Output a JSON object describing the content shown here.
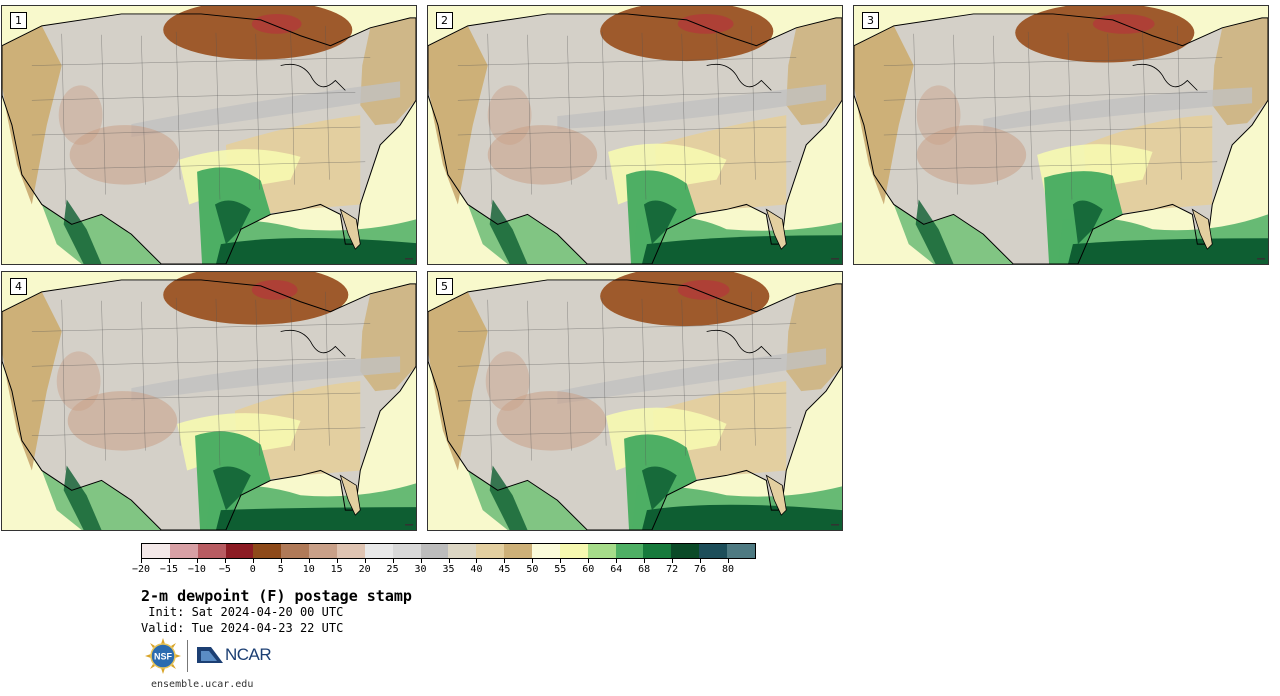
{
  "panels": [
    {
      "label": "1"
    },
    {
      "label": "2"
    },
    {
      "label": "3"
    },
    {
      "label": "4"
    },
    {
      "label": "5"
    }
  ],
  "colorbar": {
    "colors": [
      "#f3e8e8",
      "#d8a0a5",
      "#b85c62",
      "#8c1c24",
      "#8e4a1a",
      "#b07a58",
      "#c9a088",
      "#dfc4b2",
      "#e8e8e8",
      "#d8d8d8",
      "#bcbcbc",
      "#dcd6c4",
      "#e3cfa0",
      "#cdb078",
      "#fbfbda",
      "#f6f8b0",
      "#a6dc8a",
      "#4eaf64",
      "#177a3c",
      "#0b4a28",
      "#1d4e5a",
      "#4e7a82"
    ],
    "tick_labels": [
      "−20",
      "−15",
      "−10",
      "−5",
      "0",
      "5",
      "10",
      "15",
      "20",
      "25",
      "30",
      "35",
      "40",
      "45",
      "50",
      "55",
      "60",
      "64",
      "68",
      "72",
      "76",
      "80"
    ]
  },
  "title": "2-m dewpoint (F) postage stamp",
  "init_line": " Init: Sat 2024-04-20 00 UTC",
  "valid_line": "Valid: Tue 2024-04-23 22 UTC",
  "logos": {
    "nsf": "NSF",
    "ncar": "NCAR"
  },
  "website": "ensemble.ucar.edu",
  "map_palette": {
    "ocean": "#f8f9cc",
    "land_base": "#d4d0c8",
    "west_moist": "#cdb078",
    "north_dry": "#9e5a2c",
    "north_very_dry": "#b23a3a",
    "gulf_moist": "#4eaf64",
    "gulf_very_moist": "#0e5e32",
    "mid_band": "#c0c0c0",
    "southeast": "#e3cfa0",
    "yellow": "#f6f8b0",
    "brown_patch": "#c9a088",
    "coast": "#000000",
    "border": "#555555"
  }
}
